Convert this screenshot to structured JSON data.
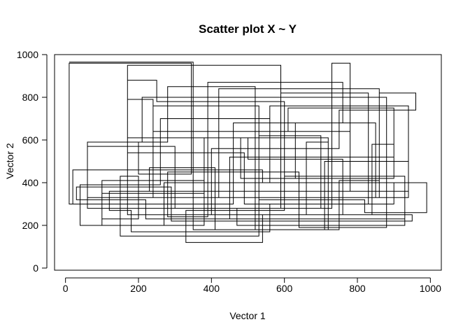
{
  "chart_data": {
    "type": "line",
    "title": "Scatter plot X ~ Y",
    "xlabel": "Vector 1",
    "ylabel": "Vector 2",
    "xlim": [
      -30,
      1030
    ],
    "ylim": [
      -10,
      1000
    ],
    "xticks": [
      0,
      200,
      400,
      600,
      800,
      1000
    ],
    "yticks": [
      0,
      200,
      400,
      600,
      800,
      1000
    ],
    "xtick_labels": [
      "0",
      "200",
      "400",
      "600",
      "800",
      "1000"
    ],
    "ytick_labels": [
      "0",
      "200",
      "400",
      "600",
      "800",
      "1000"
    ],
    "grid": false,
    "legend": "none",
    "line_color": "#000000",
    "series": [
      {
        "x": [
          10,
          350,
          350,
          10,
          10,
          345,
          345,
          200,
          200,
          280,
          280,
          520,
          520,
          750,
          750,
          860,
          860,
          420,
          420,
          240,
          240,
          170,
          170,
          590,
          590,
          700,
          700,
          530,
          530,
          150,
          150,
          200,
          200,
          100,
          100,
          380,
          380,
          930,
          930,
          600,
          600,
          250,
          250,
          170,
          170,
          490,
          490,
          830,
          830,
          590,
          590,
          380,
          380,
          40,
          40,
          260,
          260,
          560,
          560,
          900,
          900,
          610,
          610,
          240,
          240,
          530,
          530,
          820,
          820,
          990,
          990,
          780,
          780,
          730,
          730,
          300,
          300,
          60,
          60,
          350,
          350,
          710,
          710,
          940,
          940,
          850,
          850,
          630,
          630,
          480,
          480,
          170,
          170,
          400,
          400,
          750,
          750,
          960,
          960,
          860,
          860,
          300,
          300,
          120,
          120,
          180,
          180,
          560,
          560,
          900,
          900,
          540,
          540,
          20,
          20,
          460,
          460,
          760,
          760,
          390,
          390,
          280,
          280,
          640,
          640,
          880,
          880,
          210,
          210,
          60,
          60,
          470,
          470,
          930,
          930,
          780,
          780,
          600,
          600,
          330,
          330,
          540,
          540,
          840,
          840,
          900,
          900,
          450,
          450,
          220,
          220,
          30,
          30,
          290,
          290,
          950,
          950,
          660,
          660,
          720,
          720,
          410,
          410,
          230,
          230,
          940,
          940,
          560,
          560,
          270,
          270,
          100,
          100,
          380,
          380,
          760,
          760,
          500,
          500,
          720,
          720
        ],
        "y": [
          965,
          965,
          300,
          300,
          960,
          960,
          440,
          440,
          590,
          590,
          850,
          850,
          180,
          180,
          410,
          410,
          840,
          840,
          330,
          330,
          790,
          790,
          950,
          950,
          280,
          280,
          620,
          620,
          150,
          150,
          430,
          430,
          230,
          230,
          350,
          350,
          230,
          230,
          430,
          430,
          780,
          780,
          880,
          880,
          540,
          540,
          300,
          300,
          820,
          820,
          610,
          610,
          200,
          200,
          390,
          390,
          700,
          700,
          420,
          420,
          750,
          750,
          640,
          640,
          760,
          760,
          320,
          320,
          260,
          260,
          400,
          400,
          960,
          960,
          280,
          280,
          570,
          570,
          330,
          330,
          180,
          180,
          500,
          500,
          330,
          330,
          680,
          680,
          420,
          420,
          610,
          610,
          250,
          250,
          560,
          560,
          740,
          740,
          820,
          820,
          330,
          330,
          360,
          360,
          270,
          270,
          170,
          170,
          300,
          300,
          400,
          400,
          460,
          460,
          300,
          300,
          680,
          680,
          870,
          870,
          240,
          240,
          450,
          450,
          190,
          190,
          800,
          800,
          590,
          590,
          280,
          280,
          200,
          200,
          360,
          360,
          640,
          640,
          270,
          270,
          120,
          120,
          250,
          250,
          580,
          580,
          520,
          520,
          230,
          230,
          320,
          320,
          380,
          380,
          220,
          220,
          250,
          250,
          590,
          590,
          180,
          180,
          470,
          470,
          360,
          360,
          760,
          760,
          400,
          400,
          200,
          200,
          410,
          410,
          250,
          250,
          510,
          510,
          610,
          610,
          540
        ]
      }
    ]
  }
}
